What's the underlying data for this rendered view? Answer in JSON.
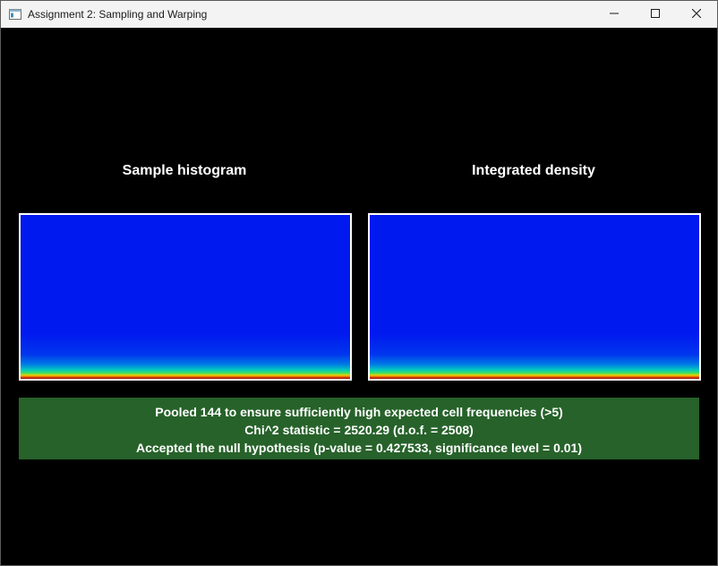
{
  "window": {
    "title": "Assignment 2: Sampling and Warping",
    "icons": {
      "app": "app-window-icon",
      "minimize": "minimize-icon",
      "maximize": "maximize-icon",
      "close": "close-icon"
    }
  },
  "panels": {
    "left_title": "Sample histogram",
    "right_title": "Integrated density"
  },
  "result": {
    "line1": "Pooled 144 to ensure sufficiently high expected cell frequencies (>5)",
    "line2": "Chi^2 statistic = 2520.29 (d.o.f. = 2508)",
    "line3": "Accepted the null hypothesis (p-value = 0.427533, significance level = 0.01)"
  },
  "colors": {
    "background": "#000000",
    "titlebar": "#f3f3f3",
    "plot_blue": "#0019ef",
    "result_green": "#27622a",
    "text": "#ffffff"
  }
}
